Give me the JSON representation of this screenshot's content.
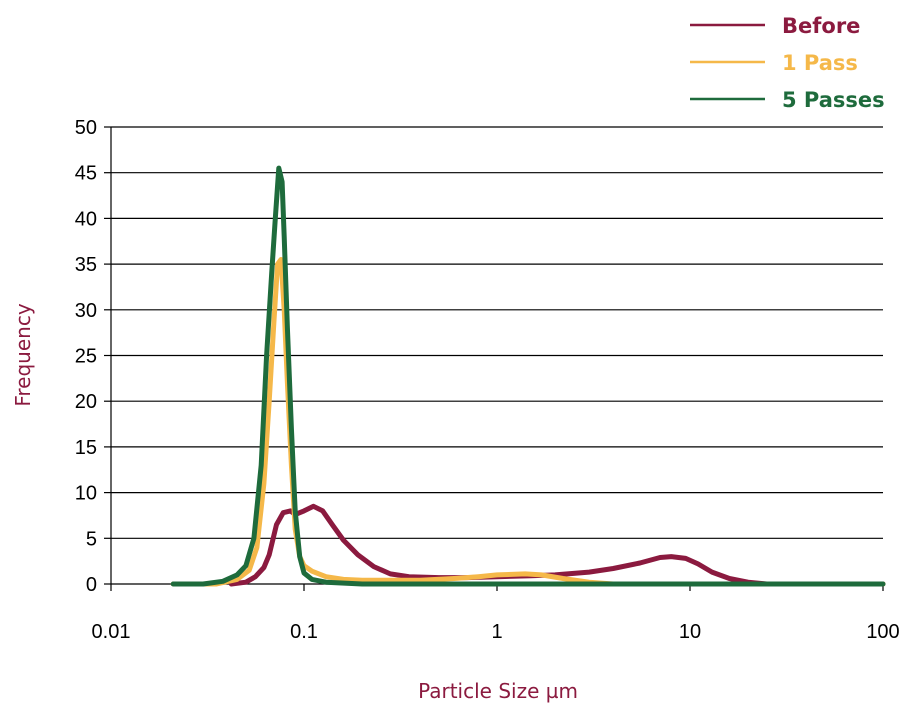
{
  "chart_data": {
    "type": "line",
    "title": "",
    "xlabel": "Particle Size µm",
    "ylabel": "Frequency",
    "xscale": "log",
    "xlim": [
      0.01,
      100
    ],
    "ylim": [
      0,
      50
    ],
    "x_ticks": [
      0.01,
      0.1,
      1,
      10,
      100
    ],
    "x_tick_labels": [
      "0.01",
      "0.1",
      "1",
      "10",
      "100"
    ],
    "y_ticks": [
      0,
      5,
      10,
      15,
      20,
      25,
      30,
      35,
      40,
      45,
      50
    ],
    "y_tick_labels": [
      "0",
      "5",
      "10",
      "15",
      "20",
      "25",
      "30",
      "35",
      "40",
      "45",
      "50"
    ],
    "grid": "horizontal",
    "legend_position": "top-right",
    "series": [
      {
        "name": "Before",
        "color": "#8b1a3f",
        "points": [
          [
            0.042,
            0
          ],
          [
            0.05,
            0.2
          ],
          [
            0.056,
            0.8
          ],
          [
            0.062,
            1.8
          ],
          [
            0.066,
            3.2
          ],
          [
            0.072,
            6.5
          ],
          [
            0.078,
            7.8
          ],
          [
            0.085,
            8.0
          ],
          [
            0.09,
            7.6
          ],
          [
            0.1,
            8.0
          ],
          [
            0.112,
            8.5
          ],
          [
            0.125,
            8.0
          ],
          [
            0.14,
            6.5
          ],
          [
            0.16,
            4.8
          ],
          [
            0.19,
            3.2
          ],
          [
            0.23,
            1.9
          ],
          [
            0.28,
            1.1
          ],
          [
            0.35,
            0.8
          ],
          [
            0.5,
            0.7
          ],
          [
            0.7,
            0.7
          ],
          [
            1.0,
            0.8
          ],
          [
            1.5,
            0.9
          ],
          [
            2.0,
            1.0
          ],
          [
            3.0,
            1.3
          ],
          [
            4.0,
            1.7
          ],
          [
            5.5,
            2.3
          ],
          [
            7.0,
            2.9
          ],
          [
            8.0,
            3.0
          ],
          [
            9.5,
            2.8
          ],
          [
            11,
            2.2
          ],
          [
            13,
            1.3
          ],
          [
            16,
            0.6
          ],
          [
            20,
            0.2
          ],
          [
            25,
            0
          ],
          [
            100,
            0
          ]
        ]
      },
      {
        "name": "1 Pass",
        "color": "#f5b849",
        "points": [
          [
            0.021,
            0
          ],
          [
            0.035,
            0
          ],
          [
            0.045,
            0.5
          ],
          [
            0.052,
            1.5
          ],
          [
            0.057,
            4
          ],
          [
            0.062,
            11
          ],
          [
            0.066,
            20
          ],
          [
            0.07,
            29
          ],
          [
            0.073,
            35
          ],
          [
            0.076,
            35.5
          ],
          [
            0.079,
            30
          ],
          [
            0.082,
            22
          ],
          [
            0.086,
            13
          ],
          [
            0.09,
            6
          ],
          [
            0.095,
            3
          ],
          [
            0.1,
            2.0
          ],
          [
            0.11,
            1.4
          ],
          [
            0.13,
            0.8
          ],
          [
            0.16,
            0.5
          ],
          [
            0.2,
            0.4
          ],
          [
            0.4,
            0.4
          ],
          [
            0.6,
            0.6
          ],
          [
            0.8,
            0.8
          ],
          [
            1.0,
            1.0
          ],
          [
            1.4,
            1.1
          ],
          [
            1.7,
            1.0
          ],
          [
            2.2,
            0.6
          ],
          [
            3.0,
            0.2
          ],
          [
            4.0,
            0
          ],
          [
            100,
            0
          ]
        ]
      },
      {
        "name": "5 Passes",
        "color": "#1e6b3c",
        "points": [
          [
            0.021,
            0
          ],
          [
            0.03,
            0
          ],
          [
            0.038,
            0.3
          ],
          [
            0.045,
            1.0
          ],
          [
            0.05,
            2.0
          ],
          [
            0.055,
            5
          ],
          [
            0.06,
            13
          ],
          [
            0.064,
            25
          ],
          [
            0.068,
            34
          ],
          [
            0.071,
            40
          ],
          [
            0.074,
            45.5
          ],
          [
            0.077,
            44
          ],
          [
            0.079,
            38
          ],
          [
            0.082,
            28
          ],
          [
            0.086,
            17
          ],
          [
            0.09,
            8
          ],
          [
            0.095,
            3
          ],
          [
            0.1,
            1.2
          ],
          [
            0.11,
            0.5
          ],
          [
            0.13,
            0.2
          ],
          [
            0.2,
            0
          ],
          [
            100,
            0
          ]
        ]
      }
    ]
  }
}
